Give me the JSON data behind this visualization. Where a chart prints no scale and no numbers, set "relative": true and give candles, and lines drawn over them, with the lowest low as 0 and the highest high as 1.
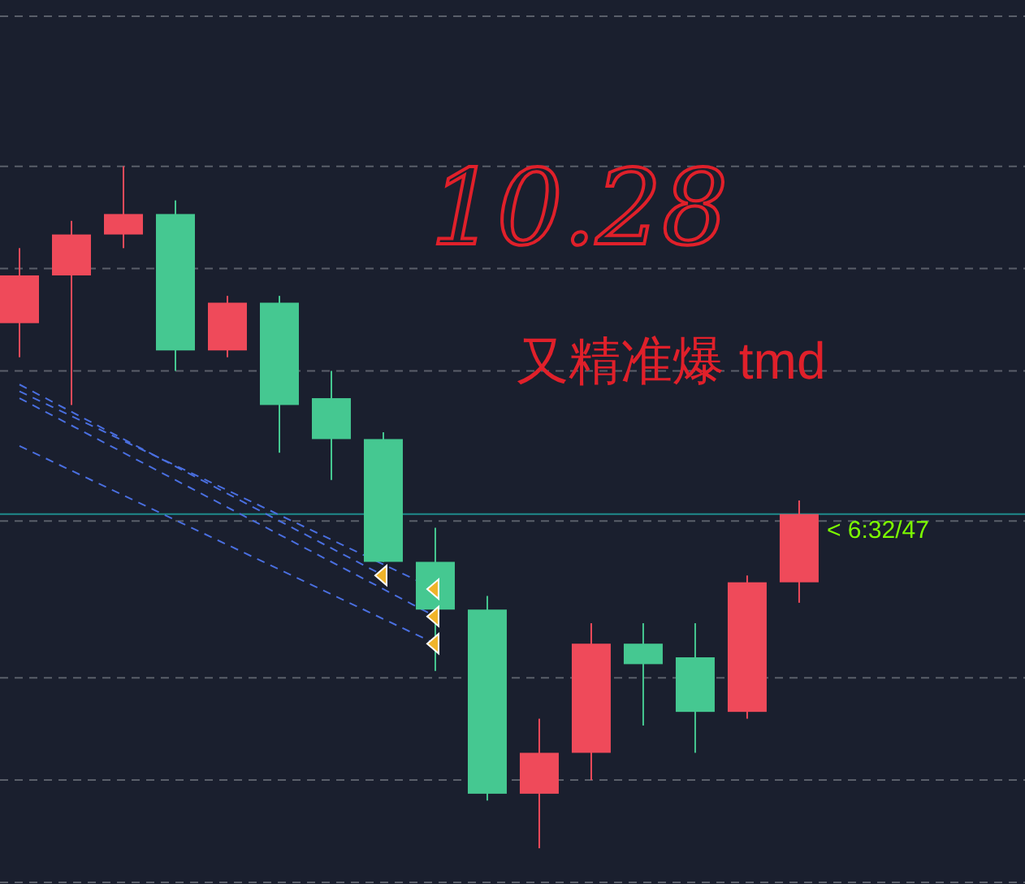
{
  "chart_data": {
    "type": "candlestick",
    "relative": true,
    "categories": [
      null,
      null,
      null,
      null,
      null,
      null,
      null,
      null,
      null,
      null,
      null,
      null,
      null,
      null,
      null,
      null
    ],
    "ohlc": [
      [
        0.77,
        0.88,
        0.72,
        0.84
      ],
      [
        0.84,
        0.92,
        0.65,
        0.9
      ],
      [
        0.9,
        1.0,
        0.88,
        0.93
      ],
      [
        0.93,
        0.95,
        0.7,
        0.73
      ],
      [
        0.73,
        0.81,
        0.72,
        0.8
      ],
      [
        0.8,
        0.81,
        0.58,
        0.65
      ],
      [
        0.66,
        0.7,
        0.54,
        0.6
      ],
      [
        0.6,
        0.61,
        0.42,
        0.42
      ],
      [
        0.42,
        0.47,
        0.26,
        0.35
      ],
      [
        0.35,
        0.37,
        0.07,
        0.08
      ],
      [
        0.08,
        0.19,
        0.0,
        0.14
      ],
      [
        0.14,
        0.33,
        0.1,
        0.3
      ],
      [
        0.3,
        0.33,
        0.18,
        0.27
      ],
      [
        0.28,
        0.33,
        0.14,
        0.2
      ],
      [
        0.2,
        0.4,
        0.19,
        0.39
      ],
      [
        0.39,
        0.51,
        0.36,
        0.49
      ]
    ],
    "colors": [
      "#ef4a5a",
      "#ef4a5a",
      "#ef4a5a",
      "#45c891",
      "#ef4a5a",
      "#45c891",
      "#45c891",
      "#45c891",
      "#45c891",
      "#45c891",
      "#ef4a5a",
      "#ef4a5a",
      "#45c891",
      "#45c891",
      "#ef4a5a",
      "#ef4a5a"
    ],
    "series": [
      {
        "type": "line",
        "values": [
          0.68,
          null,
          null,
          null,
          null,
          null,
          null,
          0.4,
          null,
          null,
          null,
          null,
          null,
          null,
          null,
          null
        ],
        "color": "#4a6fe0",
        "line_style": "dashed",
        "marker": "none"
      },
      {
        "type": "line",
        "values": [
          0.67,
          null,
          null,
          null,
          null,
          null,
          null,
          null,
          0.38,
          null,
          null,
          null,
          null,
          null,
          null,
          null
        ],
        "color": "#4a6fe0",
        "line_style": "dashed",
        "marker": "none"
      },
      {
        "type": "line",
        "values": [
          0.66,
          null,
          null,
          null,
          null,
          null,
          null,
          null,
          0.34,
          null,
          null,
          null,
          null,
          null,
          null,
          null
        ],
        "color": "#4a6fe0",
        "line_style": "dashed",
        "marker": "none"
      },
      {
        "type": "line",
        "values": [
          0.59,
          null,
          null,
          null,
          null,
          null,
          null,
          null,
          0.3,
          null,
          null,
          null,
          null,
          null,
          null,
          null
        ],
        "color": "#4a6fe0",
        "line_style": "dashed",
        "marker": "none"
      },
      {
        "type": "scatter",
        "values": [
          null,
          null,
          null,
          null,
          null,
          null,
          null,
          0.4,
          0.38,
          null,
          null,
          null,
          null,
          null,
          null,
          null
        ],
        "color": "#f0b429",
        "marker": "triangle"
      },
      {
        "type": "scatter",
        "values": [
          null,
          null,
          null,
          null,
          null,
          null,
          null,
          null,
          0.34,
          null,
          null,
          null,
          null,
          null,
          null,
          null
        ],
        "color": "#f0b429",
        "marker": "triangle"
      },
      {
        "type": "scatter",
        "values": [
          null,
          null,
          null,
          null,
          null,
          null,
          null,
          null,
          0.3,
          null,
          null,
          null,
          null,
          null,
          null,
          null
        ],
        "color": "#f0b429",
        "marker": "triangle"
      }
    ],
    "ref_lines": [
      {
        "axis": "y",
        "value": 1.22,
        "color": "#5a5f6a",
        "line_style": "dashed"
      },
      {
        "axis": "y",
        "value": 1.0,
        "color": "#5a5f6a",
        "line_style": "dashed"
      },
      {
        "axis": "y",
        "value": 0.85,
        "color": "#5a5f6a",
        "line_style": "dashed"
      },
      {
        "axis": "y",
        "value": 0.7,
        "color": "#5a5f6a",
        "line_style": "dashed"
      },
      {
        "axis": "y",
        "value": 0.48,
        "color": "#5a5f6a",
        "line_style": "dashed"
      },
      {
        "axis": "y",
        "value": 0.49,
        "color": "#1f8a8c",
        "line_style": "solid"
      },
      {
        "axis": "y",
        "value": 0.25,
        "color": "#5a5f6a",
        "line_style": "dashed"
      },
      {
        "axis": "y",
        "value": 0.1,
        "color": "#5a5f6a",
        "line_style": "dashed"
      },
      {
        "axis": "y",
        "value": -0.05,
        "color": "#5a5f6a",
        "line_style": "dashed"
      }
    ],
    "annotations": [
      "10.28",
      "又精准爆 tmd",
      "< 6:32/47"
    ]
  }
}
